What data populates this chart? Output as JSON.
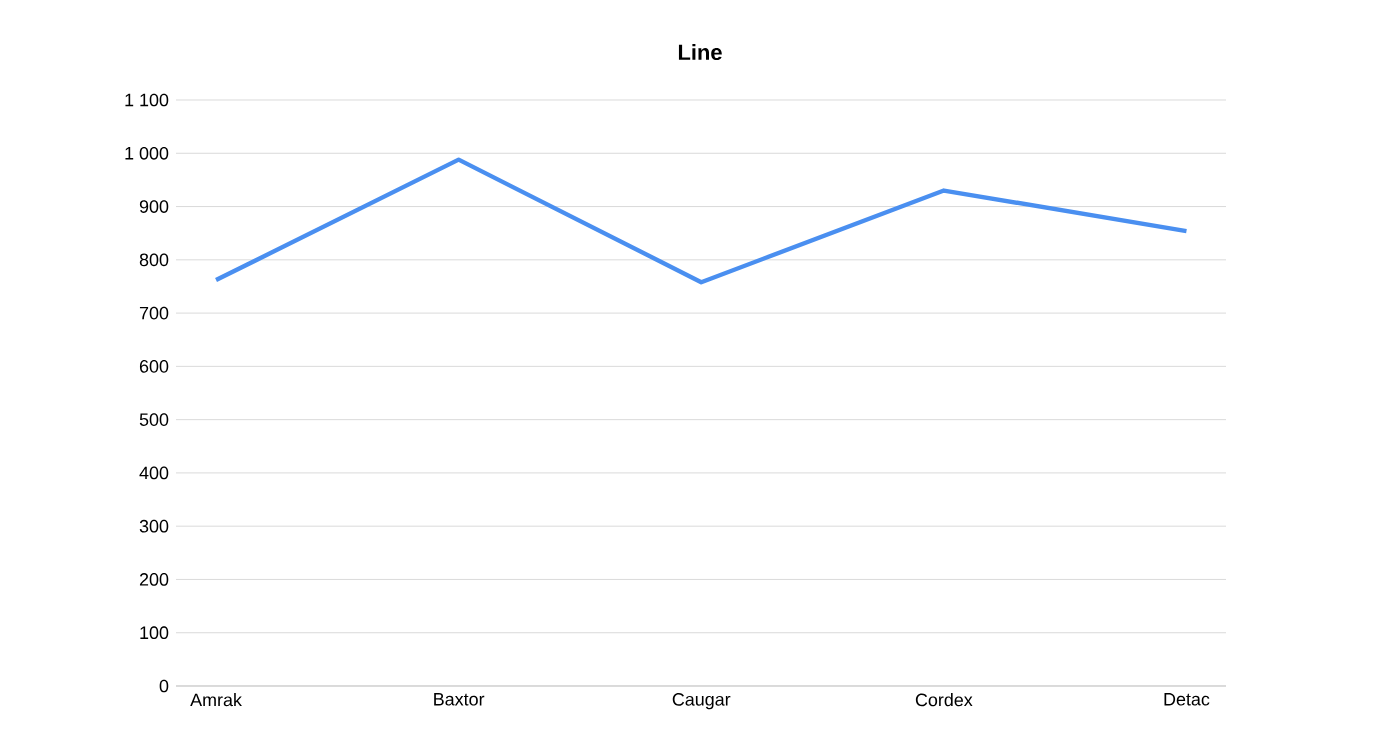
{
  "chart_data": {
    "type": "line",
    "title": "Line",
    "categories": [
      "Amrak",
      "Baxtor",
      "Caugar",
      "Cordex",
      "Detac"
    ],
    "series": [
      {
        "color": "#4a8ff0",
        "values": [
          762,
          988,
          758,
          930,
          854
        ]
      }
    ],
    "ylim": [
      0,
      1100
    ],
    "yticks": [
      0,
      100,
      200,
      300,
      400,
      500,
      600,
      700,
      800,
      900,
      {
        "value": 1000,
        "label": "1 000"
      },
      {
        "value": 1100,
        "label": "1 100"
      }
    ],
    "grid": "y",
    "legend": false,
    "marker": "none",
    "line_style": "solid"
  }
}
